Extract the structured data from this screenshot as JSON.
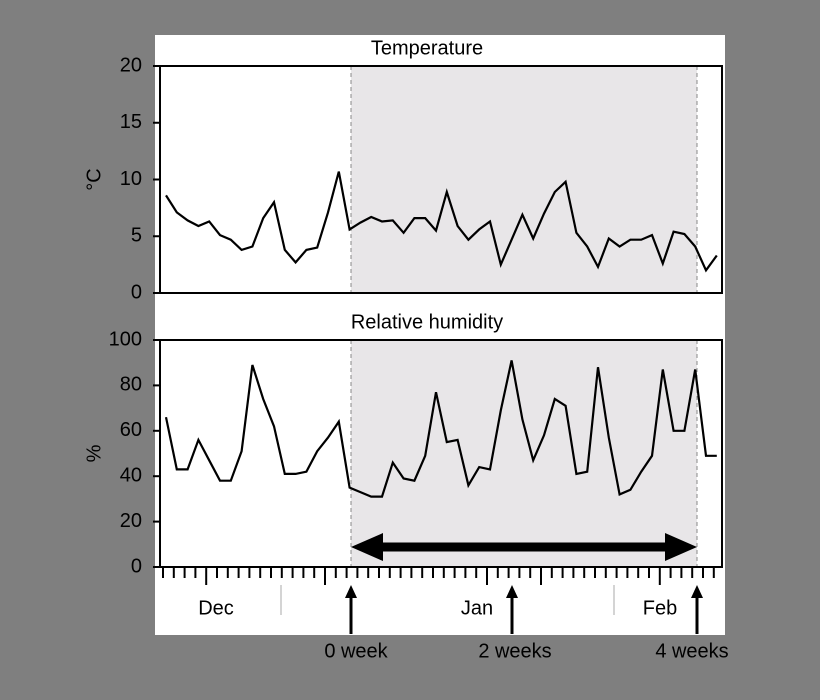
{
  "chart_data": [
    {
      "type": "line",
      "title": "Temperature",
      "y_label": "°C",
      "color": "#000000",
      "values": [
        8.6,
        7.1,
        6.4,
        5.9,
        6.3,
        5.1,
        4.7,
        3.8,
        4.1,
        6.6,
        8.0,
        3.8,
        2.7,
        3.8,
        4.0,
        7.1,
        10.7,
        5.6,
        6.2,
        6.7,
        6.3,
        6.4,
        5.3,
        6.6,
        6.6,
        5.5,
        8.9,
        5.9,
        4.7,
        5.6,
        6.3,
        2.5,
        4.7,
        6.9,
        4.8,
        7.0,
        8.9,
        9.8,
        5.3,
        4.1,
        2.3,
        4.8,
        4.1,
        4.7,
        4.7,
        5.1,
        2.6,
        5.4,
        5.2,
        4.1,
        2.0,
        3.3
      ],
      "ylim": [
        0,
        20
      ],
      "yticks": [
        0,
        5,
        10,
        15,
        20
      ]
    },
    {
      "type": "line",
      "title": "Relative humidity",
      "y_label": "%",
      "color": "#000000",
      "values": [
        66,
        43,
        43,
        56,
        47,
        38,
        38,
        51,
        89,
        74,
        62,
        41,
        41,
        42,
        51,
        57,
        64,
        35,
        33,
        31,
        31,
        46,
        39,
        38,
        49,
        77,
        55,
        56,
        36,
        44,
        43,
        69,
        91,
        65,
        47,
        58,
        74,
        71,
        41,
        42,
        88,
        57,
        32,
        34,
        42,
        49,
        87,
        60,
        60,
        87,
        49,
        49
      ],
      "ylim": [
        0,
        100
      ],
      "yticks": [
        0,
        20,
        40,
        60,
        80,
        100
      ]
    }
  ],
  "annotations": {
    "months": [
      "Dec",
      "Jan",
      "Feb"
    ],
    "markers": [
      "0 week",
      "2 weeks",
      "4 weeks"
    ]
  }
}
